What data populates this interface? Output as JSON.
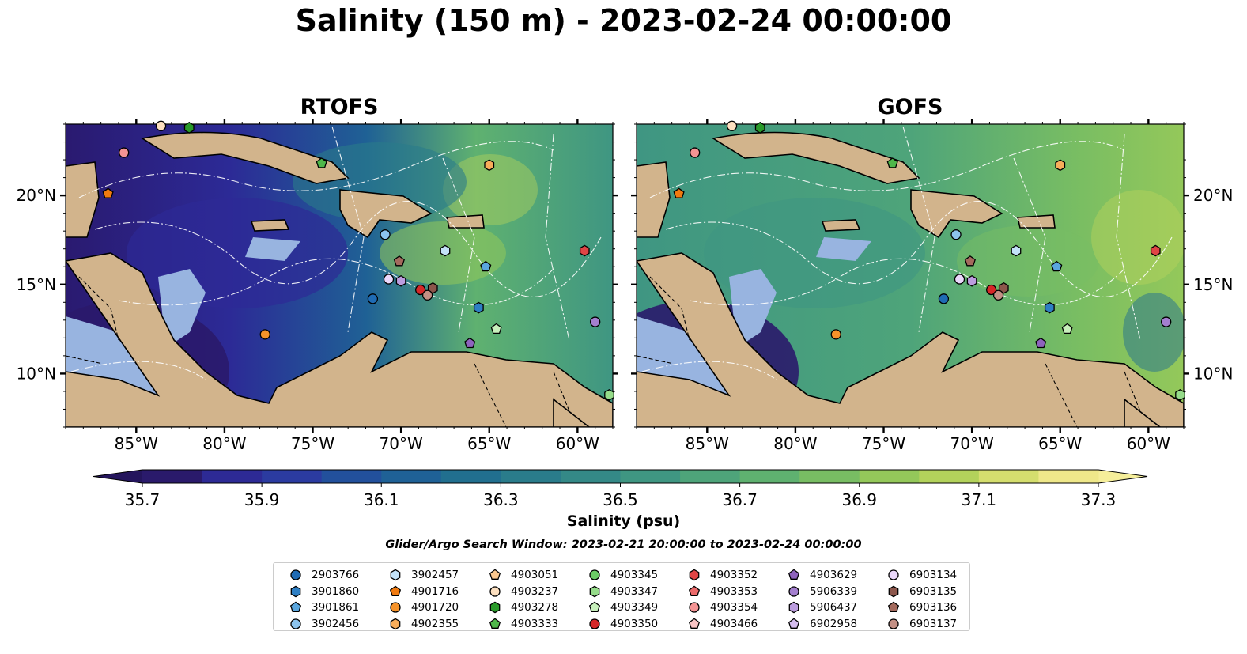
{
  "title": "Salinity (150 m) - 2023-02-24 00:00:00",
  "panels": {
    "left_title": "RTOFS",
    "right_title": "GOFS"
  },
  "map_axes": {
    "lon_ticks": [
      "85°W",
      "80°W",
      "75°W",
      "70°W",
      "65°W",
      "60°W"
    ],
    "lat_ticks": [
      "20°N",
      "15°N",
      "10°N"
    ],
    "lon_range": [
      -89,
      -58
    ],
    "lat_range": [
      7,
      24
    ]
  },
  "colorbar": {
    "label": "Salinity (psu)",
    "ticks": [
      "35.7",
      "35.9",
      "36.1",
      "36.3",
      "36.5",
      "36.7",
      "36.9",
      "37.1",
      "37.3"
    ],
    "range": [
      35.6,
      37.4
    ],
    "colors": [
      "#2a1a6b",
      "#2d2a95",
      "#2b3ba0",
      "#22509c",
      "#1f6196",
      "#216f8f",
      "#2a7c8b",
      "#348987",
      "#3f9682",
      "#4ea47a",
      "#5fb170",
      "#78bd63",
      "#94c85a",
      "#b3d25b",
      "#d5de6e",
      "#efe88a"
    ]
  },
  "search_window": "Glider/Argo Search Window: 2023-02-21 20:00:00 to 2023-02-24 00:00:00",
  "legend": {
    "columns": [
      [
        {
          "id": "2903766",
          "marker": "circle",
          "color": "#1f6bb4"
        },
        {
          "id": "3901860",
          "marker": "hexagon",
          "color": "#2e7fc4"
        },
        {
          "id": "3901861",
          "marker": "pentagon",
          "color": "#5aa6de"
        },
        {
          "id": "3902456",
          "marker": "circle",
          "color": "#8cc4ee"
        }
      ],
      [
        {
          "id": "3902457",
          "marker": "hexagon",
          "color": "#c3e2f8"
        },
        {
          "id": "4901716",
          "marker": "pentagon",
          "color": "#f07a10"
        },
        {
          "id": "4901720",
          "marker": "circle",
          "color": "#f6932a"
        },
        {
          "id": "4902355",
          "marker": "hexagon",
          "color": "#f8ad5a"
        }
      ],
      [
        {
          "id": "4903051",
          "marker": "pentagon",
          "color": "#fbc88f"
        },
        {
          "id": "4903237",
          "marker": "circle",
          "color": "#fde0c0"
        },
        {
          "id": "4903278",
          "marker": "hexagon",
          "color": "#2a9a2a"
        },
        {
          "id": "4903333",
          "marker": "pentagon",
          "color": "#4fb84a"
        }
      ],
      [
        {
          "id": "4903345",
          "marker": "circle",
          "color": "#6ccc66"
        },
        {
          "id": "4903347",
          "marker": "hexagon",
          "color": "#96dc8a"
        },
        {
          "id": "4903349",
          "marker": "pentagon",
          "color": "#c8f0bc"
        },
        {
          "id": "4903350",
          "marker": "circle",
          "color": "#d62728"
        }
      ],
      [
        {
          "id": "4903352",
          "marker": "hexagon",
          "color": "#e04545"
        },
        {
          "id": "4903353",
          "marker": "pentagon",
          "color": "#ec6a6a"
        },
        {
          "id": "4903354",
          "marker": "circle",
          "color": "#f49494"
        },
        {
          "id": "4903466",
          "marker": "pentagon",
          "color": "#f9c4c4"
        }
      ],
      [
        {
          "id": "4903629",
          "marker": "pentagon",
          "color": "#8e63bd"
        },
        {
          "id": "5906339",
          "marker": "circle",
          "color": "#a47fcf"
        },
        {
          "id": "5906437",
          "marker": "hexagon",
          "color": "#bc9ddf"
        },
        {
          "id": "6902958",
          "marker": "pentagon",
          "color": "#d5bdef"
        }
      ],
      [
        {
          "id": "6903134",
          "marker": "circle",
          "color": "#ebd8fb"
        },
        {
          "id": "6903135",
          "marker": "hexagon",
          "color": "#8c564b"
        },
        {
          "id": "6903136",
          "marker": "pentagon",
          "color": "#a46a5d"
        },
        {
          "id": "6903137",
          "marker": "circle",
          "color": "#c49085"
        }
      ]
    ]
  },
  "chart_data": [
    {
      "type": "heatmap",
      "title": "RTOFS",
      "variable": "Salinity at 150 m",
      "units": "psu",
      "xlim": [
        -89,
        -58
      ],
      "ylim": [
        7,
        24
      ],
      "value_range": [
        35.7,
        37.3
      ],
      "floats": [
        {
          "id": "4903354",
          "lon": -85.7,
          "lat": 22.4,
          "marker": "circle",
          "color": "#f49494"
        },
        {
          "id": "4901716",
          "lon": -86.6,
          "lat": 20.1,
          "marker": "pentagon",
          "color": "#f07a10"
        },
        {
          "id": "4903333",
          "lon": -74.5,
          "lat": 21.8,
          "marker": "pentagon",
          "color": "#4fb84a"
        },
        {
          "id": "4903278",
          "lon": -82.0,
          "lat": 23.8,
          "marker": "hexagon",
          "color": "#2a9a2a"
        },
        {
          "id": "4903237",
          "lon": -83.6,
          "lat": 23.9,
          "marker": "circle",
          "color": "#fde0c0"
        },
        {
          "id": "4902355",
          "lon": -65.0,
          "lat": 21.7,
          "marker": "hexagon",
          "color": "#f8ad5a"
        },
        {
          "id": "3902456",
          "lon": -70.9,
          "lat": 17.8,
          "marker": "circle",
          "color": "#8cc4ee"
        },
        {
          "id": "3902457",
          "lon": -67.5,
          "lat": 16.9,
          "marker": "hexagon",
          "color": "#c3e2f8"
        },
        {
          "id": "6903136",
          "lon": -70.1,
          "lat": 16.3,
          "marker": "pentagon",
          "color": "#a46a5d"
        },
        {
          "id": "3901861",
          "lon": -65.2,
          "lat": 16.0,
          "marker": "pentagon",
          "color": "#5aa6de"
        },
        {
          "id": "4903352",
          "lon": -59.6,
          "lat": 16.9,
          "marker": "hexagon",
          "color": "#e04545"
        },
        {
          "id": "6903134",
          "lon": -70.7,
          "lat": 15.3,
          "marker": "circle",
          "color": "#ebd8fb"
        },
        {
          "id": "5906437",
          "lon": -70.0,
          "lat": 15.2,
          "marker": "hexagon",
          "color": "#bc9ddf"
        },
        {
          "id": "4903350",
          "lon": -68.9,
          "lat": 14.7,
          "marker": "circle",
          "color": "#d62728"
        },
        {
          "id": "6903135",
          "lon": -68.2,
          "lat": 14.8,
          "marker": "hexagon",
          "color": "#8c564b"
        },
        {
          "id": "6903137",
          "lon": -68.5,
          "lat": 14.4,
          "marker": "circle",
          "color": "#c49085"
        },
        {
          "id": "2903766",
          "lon": -71.6,
          "lat": 14.2,
          "marker": "circle",
          "color": "#1f6bb4"
        },
        {
          "id": "3901860",
          "lon": -65.6,
          "lat": 13.7,
          "marker": "hexagon",
          "color": "#2e7fc4"
        },
        {
          "id": "5906339",
          "lon": -59.0,
          "lat": 12.9,
          "marker": "circle",
          "color": "#a47fcf"
        },
        {
          "id": "4903349",
          "lon": -64.6,
          "lat": 12.5,
          "marker": "pentagon",
          "color": "#c8f0bc"
        },
        {
          "id": "4903629",
          "lon": -66.1,
          "lat": 11.7,
          "marker": "pentagon",
          "color": "#8e63bd"
        },
        {
          "id": "4901720",
          "lon": -77.7,
          "lat": 12.2,
          "marker": "circle",
          "color": "#f6932a"
        },
        {
          "id": "4903347",
          "lon": -58.2,
          "lat": 8.8,
          "marker": "hexagon",
          "color": "#96dc8a"
        }
      ]
    },
    {
      "type": "heatmap",
      "title": "GOFS",
      "variable": "Salinity at 150 m",
      "units": "psu",
      "xlim": [
        -89,
        -58
      ],
      "ylim": [
        7,
        24
      ],
      "value_range": [
        35.7,
        37.3
      ],
      "floats": "same as RTOFS"
    }
  ]
}
